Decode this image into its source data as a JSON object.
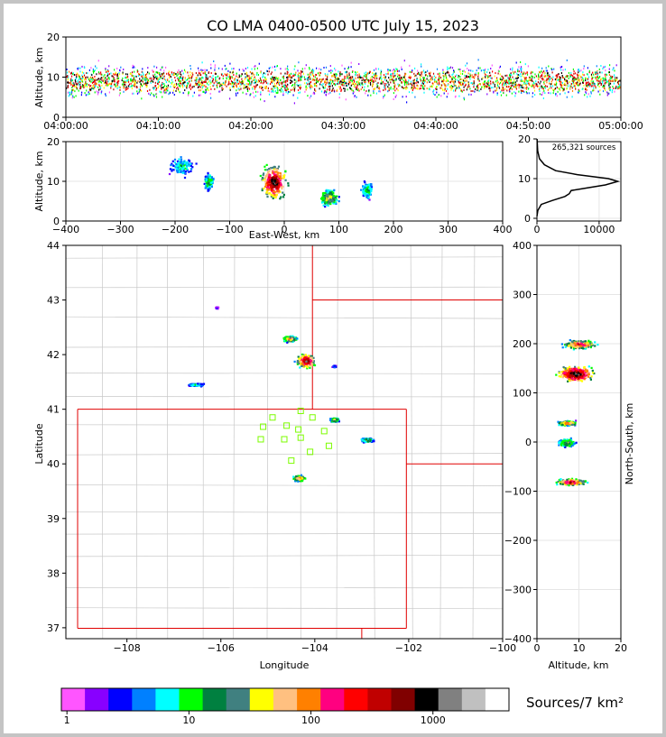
{
  "chart_data": {
    "title": "CO LMA 0400-0500 UTC July 15, 2023",
    "type": "heatmap",
    "colors": [
      "#ff55ff",
      "#8800ff",
      "#0000ff",
      "#0080ff",
      "#00ffff",
      "#00ff00",
      "#008040",
      "#408080",
      "#ffff00",
      "#ffc080",
      "#ff8000",
      "#ff0080",
      "#ff0000",
      "#c00000",
      "#800000",
      "#000000",
      "#808080",
      "#c0c0c0",
      "#ffffff"
    ],
    "panels": {
      "time_altitude": {
        "ylabel": "Altitude, km",
        "ylim": [
          0,
          20
        ],
        "yticks": [
          "0",
          "10",
          "20"
        ],
        "xticks": [
          "04:00:00",
          "04:10:00",
          "04:20:00",
          "04:30:00",
          "04:40:00",
          "04:50:00",
          "05:00:00"
        ]
      },
      "ew_altitude": {
        "ylabel": "Altitude, km",
        "xlabel": "East-West, km",
        "xlim": [
          -400,
          400
        ],
        "ylim": [
          0,
          20
        ],
        "xticks": [
          "−400",
          "−300",
          "−200",
          "−100",
          "0",
          "100",
          "200",
          "300",
          "400"
        ],
        "yticks": [
          "0",
          "10",
          "20"
        ],
        "clusters": [
          {
            "x": -190,
            "z": 14,
            "w": 55,
            "h": 6,
            "level": 5
          },
          {
            "x": -140,
            "z": 10,
            "w": 20,
            "h": 5,
            "level": 7
          },
          {
            "x": -20,
            "z": 10,
            "w": 55,
            "h": 10,
            "level": 16
          },
          {
            "x": 80,
            "z": 6,
            "w": 40,
            "h": 5,
            "level": 9
          },
          {
            "x": 150,
            "z": 8,
            "w": 25,
            "h": 5,
            "level": 6
          }
        ]
      },
      "altitude_histogram": {
        "annotation": "265,321 sources",
        "xlim": [
          0,
          13500
        ],
        "ylim": [
          0,
          20
        ],
        "xticks": [
          "0",
          "10000"
        ],
        "yticks": [
          "0",
          "10",
          "20"
        ],
        "profile": [
          {
            "alt": 0.5,
            "count": 0
          },
          {
            "alt": 2,
            "count": 150
          },
          {
            "alt": 3.5,
            "count": 700
          },
          {
            "alt": 4.5,
            "count": 2500
          },
          {
            "alt": 5.5,
            "count": 4500
          },
          {
            "alt": 6.2,
            "count": 5200
          },
          {
            "alt": 7,
            "count": 5500
          },
          {
            "alt": 7.6,
            "count": 7800
          },
          {
            "alt": 8.4,
            "count": 11000
          },
          {
            "alt": 9.3,
            "count": 13000
          },
          {
            "alt": 10,
            "count": 11500
          },
          {
            "alt": 11,
            "count": 6500
          },
          {
            "alt": 12,
            "count": 3000
          },
          {
            "alt": 13.5,
            "count": 1200
          },
          {
            "alt": 15,
            "count": 400
          },
          {
            "alt": 17,
            "count": 120
          },
          {
            "alt": 20,
            "count": 20
          }
        ]
      },
      "plan_view": {
        "xlabel": "Longitude",
        "ylabel": "Latitude",
        "xlim": [
          -109.3,
          -100.0
        ],
        "ylim": [
          36.8,
          44.0
        ],
        "xticks": [
          "−108",
          "−106",
          "−104",
          "−102",
          "−100"
        ],
        "yticks": [
          "37",
          "38",
          "39",
          "40",
          "41",
          "42",
          "43",
          "44"
        ],
        "stations": [
          {
            "lon": -104.9,
            "lat": 40.85
          },
          {
            "lon": -104.6,
            "lat": 40.7
          },
          {
            "lon": -104.3,
            "lat": 40.97
          },
          {
            "lon": -104.05,
            "lat": 40.85
          },
          {
            "lon": -105.1,
            "lat": 40.68
          },
          {
            "lon": -104.35,
            "lat": 40.63
          },
          {
            "lon": -103.8,
            "lat": 40.6
          },
          {
            "lon": -105.15,
            "lat": 40.45
          },
          {
            "lon": -104.65,
            "lat": 40.45
          },
          {
            "lon": -104.3,
            "lat": 40.48
          },
          {
            "lon": -103.7,
            "lat": 40.33
          },
          {
            "lon": -104.1,
            "lat": 40.22
          },
          {
            "lon": -104.5,
            "lat": 40.06
          }
        ],
        "clusters": [
          {
            "lon": -104.2,
            "lat": 41.9,
            "w": 0.6,
            "h": 0.35,
            "level": 16
          },
          {
            "lon": -104.55,
            "lat": 42.3,
            "w": 0.45,
            "h": 0.15,
            "level": 11
          },
          {
            "lon": -106.55,
            "lat": 41.46,
            "w": 0.55,
            "h": 0.08,
            "level": 5
          },
          {
            "lon": -103.6,
            "lat": 40.82,
            "w": 0.3,
            "h": 0.1,
            "level": 9
          },
          {
            "lon": -102.9,
            "lat": 40.45,
            "w": 0.4,
            "h": 0.1,
            "level": 8
          },
          {
            "lon": -104.35,
            "lat": 39.75,
            "w": 0.4,
            "h": 0.15,
            "level": 11
          },
          {
            "lon": -106.1,
            "lat": 42.87,
            "w": 0.08,
            "h": 0.04,
            "level": 2
          },
          {
            "lon": -103.6,
            "lat": 41.8,
            "w": 0.12,
            "h": 0.05,
            "level": 3
          }
        ]
      },
      "ns_altitude": {
        "xlabel": "Altitude, km",
        "ylabel": "North-South, km",
        "xlim": [
          0,
          20
        ],
        "ylim": [
          -400,
          400
        ],
        "xticks": [
          "0",
          "10",
          "20"
        ],
        "yticks": [
          "−400",
          "−300",
          "−200",
          "−100",
          "0",
          "100",
          "200",
          "300",
          "400"
        ],
        "clusters": [
          {
            "z": 10,
            "y": 200,
            "w": 9,
            "h": 20,
            "level": 13
          },
          {
            "z": 9,
            "y": 140,
            "w": 10,
            "h": 40,
            "level": 17
          },
          {
            "z": 7,
            "y": 40,
            "w": 5,
            "h": 10,
            "level": 12
          },
          {
            "z": 7,
            "y": 0,
            "w": 5,
            "h": 20,
            "level": 8
          },
          {
            "z": 8,
            "y": -80,
            "w": 8,
            "h": 15,
            "level": 14
          }
        ]
      }
    },
    "colorbar": {
      "label": "Sources/7 km²",
      "ticks": [
        "1",
        "10",
        "100",
        "1000"
      ],
      "tick_values": [
        1,
        10,
        100,
        1000
      ]
    }
  }
}
